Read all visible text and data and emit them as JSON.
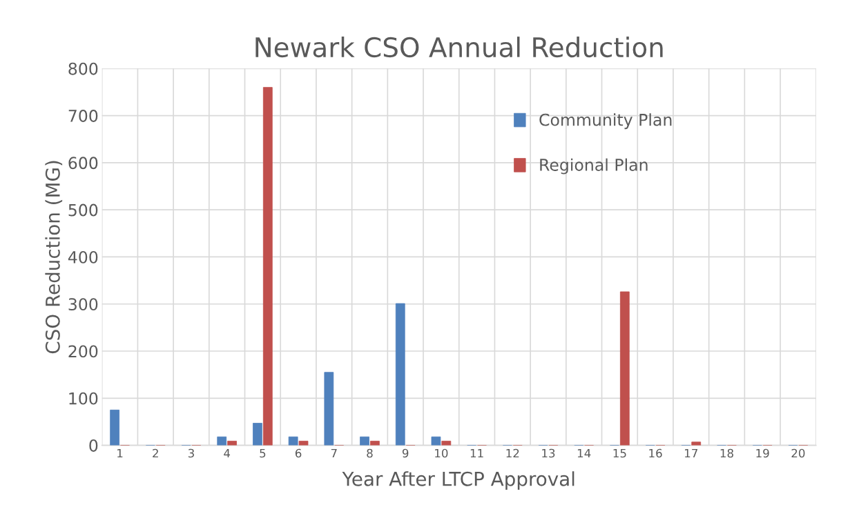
{
  "chart_data": {
    "type": "bar",
    "title": "Newark CSO Annual Reduction",
    "xlabel": "Year After LTCP Approval",
    "ylabel": "CSO Reduction (MG)",
    "categories": [
      "1",
      "2",
      "3",
      "4",
      "5",
      "6",
      "7",
      "8",
      "9",
      "10",
      "11",
      "12",
      "13",
      "14",
      "15",
      "16",
      "17",
      "18",
      "19",
      "20"
    ],
    "series": [
      {
        "name": "Community Plan",
        "color": "#4f81bd",
        "values": [
          75,
          0,
          0,
          18,
          47,
          18,
          155,
          18,
          301,
          18,
          0,
          0,
          0,
          0,
          0,
          0,
          0,
          0,
          0,
          0
        ]
      },
      {
        "name": "Regional Plan",
        "color": "#c0504d",
        "values": [
          0,
          0,
          0,
          9,
          760,
          9,
          0,
          9,
          0,
          9,
          0,
          0,
          0,
          0,
          326,
          0,
          7,
          0,
          0,
          0
        ]
      }
    ],
    "ylim": [
      0,
      800
    ],
    "yticks": [
      0,
      100,
      200,
      300,
      400,
      500,
      600,
      700,
      800
    ],
    "grid": true,
    "legend": "top right"
  }
}
